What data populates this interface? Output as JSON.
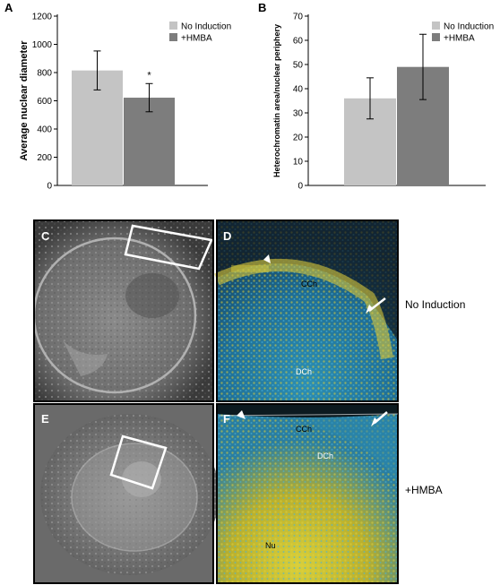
{
  "chart_data": [
    {
      "type": "bar",
      "panel": "A",
      "categories": [
        "No Induction",
        "+HMBA"
      ],
      "values": [
        815,
        622
      ],
      "errors": [
        138,
        100
      ],
      "significance": [
        "",
        "*"
      ],
      "ylabel": "Average nuclear diameter",
      "yticks": [
        0,
        200,
        400,
        600,
        800,
        1000,
        1200
      ],
      "ylim": [
        0,
        1200
      ],
      "legend": [
        "No Induction",
        "+HMBA"
      ],
      "legend_position": "top-right",
      "colors": [
        "#c4c4c4",
        "#7d7d7d"
      ]
    },
    {
      "type": "bar",
      "panel": "B",
      "categories": [
        "No Induction",
        "+HMBA"
      ],
      "values": [
        36,
        49
      ],
      "errors": [
        8.5,
        13.5
      ],
      "ylabel": "Heterochromatin area/nuclear periphery",
      "yticks": [
        0,
        10,
        20,
        30,
        40,
        50,
        60,
        70
      ],
      "ylim": [
        0,
        70
      ],
      "legend": [
        "No Induction",
        "+HMBA"
      ],
      "legend_position": "top-right",
      "colors": [
        "#c4c4c4",
        "#7d7d7d"
      ]
    }
  ],
  "micro": {
    "letters": {
      "c": "C",
      "d": "D",
      "e": "E",
      "f": "F"
    },
    "labels": {
      "cch": "CCh",
      "dch": "DCh",
      "nu": "Nu"
    },
    "row_labels": {
      "top": "No Induction",
      "bottom": "+HMBA"
    }
  }
}
